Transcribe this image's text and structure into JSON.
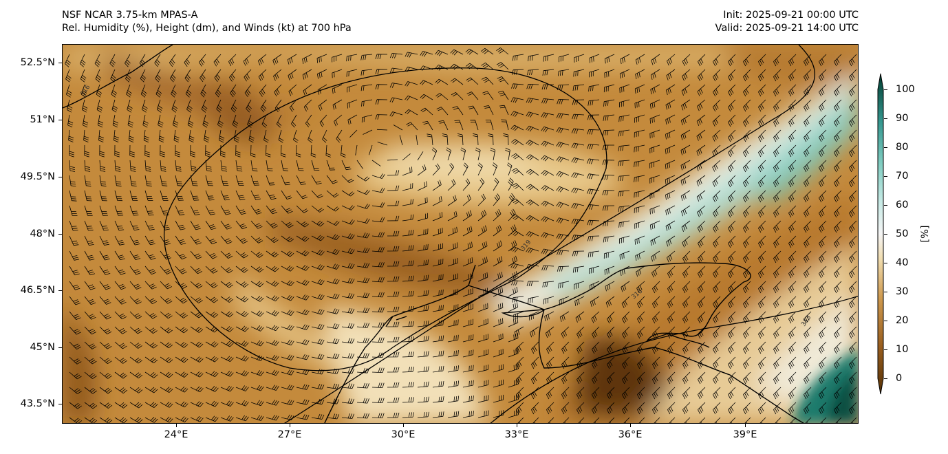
{
  "header": {
    "model": "NSF NCAR 3.75-km MPAS-A",
    "fields": "Rel. Humidity (%), Height (dm), and Winds (kt) at 700 hPa",
    "init": "Init: 2025-09-21 00:00 UTC",
    "valid": "Valid: 2025-09-21 14:00 UTC"
  },
  "axes": {
    "lon_ticks": [
      "24°E",
      "27°E",
      "30°E",
      "33°E",
      "36°E",
      "39°E"
    ],
    "lat_ticks": [
      "52.5°N",
      "51°N",
      "49.5°N",
      "48°N",
      "46.5°N",
      "45°N",
      "43.5°N"
    ]
  },
  "colorbar": {
    "label": "[%]",
    "ticks": [
      "0",
      "10",
      "20",
      "30",
      "40",
      "50",
      "60",
      "70",
      "80",
      "90",
      "100"
    ],
    "colors": {
      "dry": "#543005",
      "mid": "#f5f5f5",
      "wet": "#003c30"
    }
  },
  "contours": {
    "labels": [
      "316",
      "319",
      "316",
      "313"
    ]
  }
}
